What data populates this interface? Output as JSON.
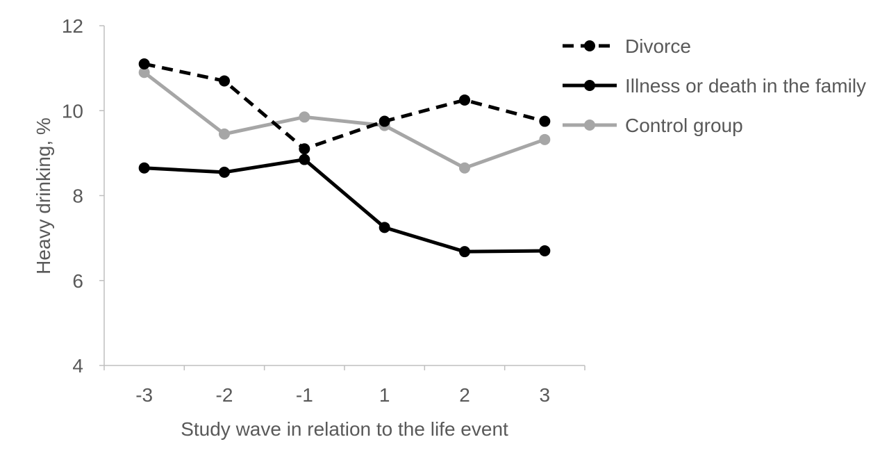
{
  "chart_data": {
    "type": "line",
    "title": "",
    "xlabel": "Study wave in relation to the life event",
    "ylabel": "Heavy drinking, %",
    "categories": [
      "-3",
      "-2",
      "-1",
      "1",
      "2",
      "3"
    ],
    "ylim": [
      4,
      12
    ],
    "yticks": [
      "4",
      "6",
      "8",
      "10",
      "12"
    ],
    "grid": false,
    "legend_position": "right",
    "series": [
      {
        "name": "Divorce",
        "values": [
          11.1,
          10.7,
          9.1,
          9.75,
          10.25,
          9.75
        ],
        "color": "#000000",
        "dashed": true
      },
      {
        "name": "Illness or death in the family",
        "values": [
          8.65,
          8.55,
          8.85,
          7.25,
          6.68,
          6.7
        ],
        "color": "#000000",
        "dashed": false
      },
      {
        "name": "Control group",
        "values": [
          10.9,
          9.45,
          9.85,
          9.65,
          8.65,
          9.32
        ],
        "color": "#a6a6a6",
        "dashed": false
      }
    ]
  }
}
